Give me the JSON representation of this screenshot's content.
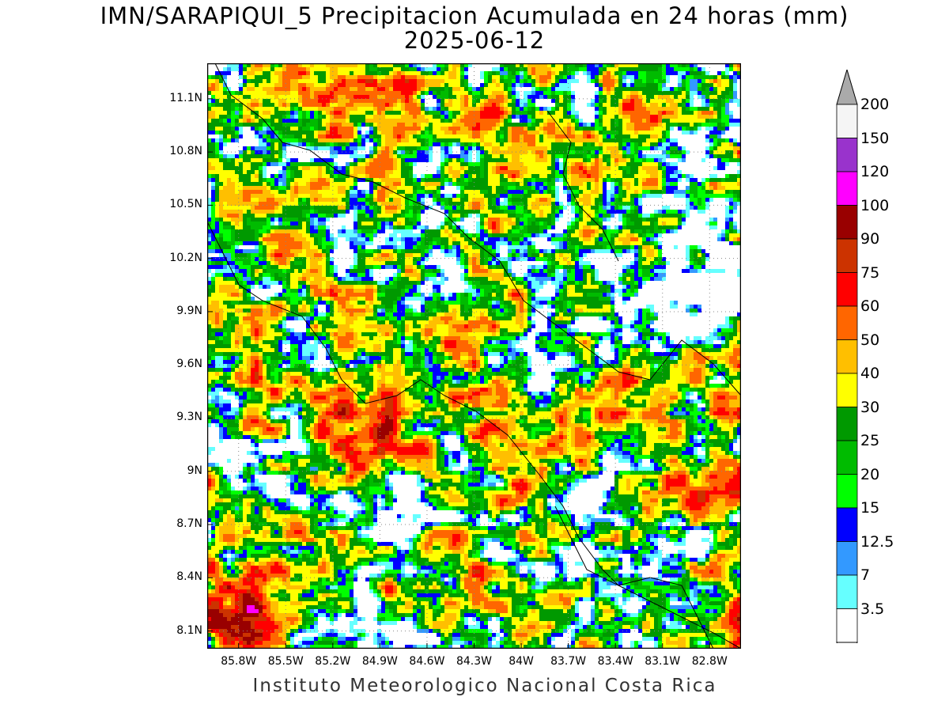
{
  "title_line1": "IMN/SARAPIQUI_5 Precipitacion Acumulada en 24 horas (mm)",
  "title_line2": "2025-06-12",
  "footer": "Instituto Meteorologico Nacional Costa Rica",
  "map": {
    "lon_range": [
      -86.0,
      -82.6
    ],
    "lat_range": [
      8.0,
      11.3
    ],
    "lat_ticks": [
      "11.1N",
      "10.8N",
      "10.5N",
      "10.2N",
      "9.9N",
      "9.6N",
      "9.3N",
      "9N",
      "8.7N",
      "8.4N",
      "8.1N"
    ],
    "lat_values": [
      11.1,
      10.8,
      10.5,
      10.2,
      9.9,
      9.6,
      9.3,
      9.0,
      8.7,
      8.4,
      8.1
    ],
    "lon_ticks": [
      "85.8W",
      "85.5W",
      "85.2W",
      "84.9W",
      "84.6W",
      "84.3W",
      "84W",
      "83.7W",
      "83.4W",
      "83.1W",
      "82.8W"
    ],
    "lon_values": [
      -85.8,
      -85.5,
      -85.2,
      -84.9,
      -84.6,
      -84.3,
      -84.0,
      -83.7,
      -83.4,
      -83.1,
      -82.8
    ],
    "grid": "dotted"
  },
  "colorbar": {
    "levels": [
      "200",
      "150",
      "120",
      "100",
      "90",
      "75",
      "60",
      "50",
      "40",
      "30",
      "25",
      "20",
      "15",
      "12.5",
      "7",
      "3.5"
    ],
    "colors": [
      "#f5f5f5",
      "#9933cc",
      "#ff00ff",
      "#990000",
      "#cc3300",
      "#ff0000",
      "#ff6600",
      "#ffbf00",
      "#ffff00",
      "#009900",
      "#00bb00",
      "#00ff00",
      "#0000ff",
      "#3399ff",
      "#66ffff",
      "#ffffff"
    ],
    "top_color": "#aaaaaa",
    "bottom_color": "#ffffff"
  }
}
